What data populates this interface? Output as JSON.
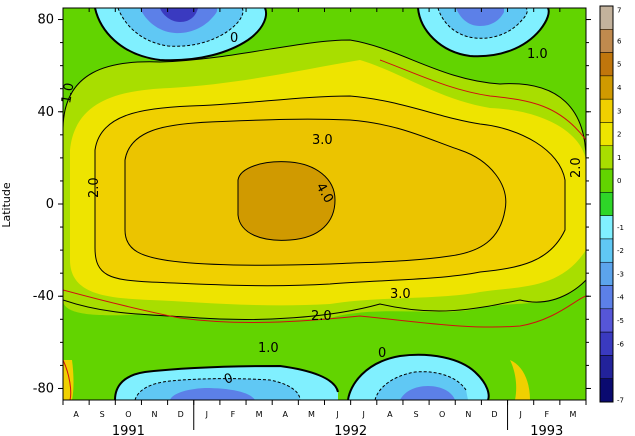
{
  "chart_data": {
    "type": "heatmap",
    "title": "",
    "ylabel": "Latitude",
    "xlabel": "",
    "ylim": [
      -85,
      85
    ],
    "y_ticks": [
      80,
      40,
      0,
      -40,
      -80
    ],
    "y_tick_labels": [
      "80",
      "40",
      "0",
      "-40",
      "-80"
    ],
    "x_months": [
      "A",
      "S",
      "O",
      "N",
      "D",
      "J",
      "F",
      "M",
      "A",
      "M",
      "J",
      "J",
      "A",
      "S",
      "O",
      "N",
      "D",
      "J",
      "F",
      "M"
    ],
    "x_years": [
      "1991",
      "1992",
      "1993"
    ],
    "colorbar": {
      "levels": [
        "7",
        "6",
        "5",
        "4",
        "3",
        "2",
        "1",
        "0",
        "-1",
        "-2",
        "-3",
        "-4",
        "-5",
        "-6",
        "-7"
      ],
      "colors": [
        "#c3b29c",
        "#c08a4e",
        "#c0760c",
        "#d09a00",
        "#f0d000",
        "#eee400",
        "#a8de00",
        "#62d400",
        "#2ed628",
        "#80f0ff",
        "#60c8f4",
        "#5ca4ec",
        "#5c80e8",
        "#5656d8",
        "#3a3ac0",
        "#22229a",
        "#0a0a70"
      ]
    },
    "contour_labels": [
      "1.0",
      "2.0",
      "3.0",
      "4.0",
      "0",
      "1.0",
      "2.0",
      "3.0",
      "0",
      "1.0",
      "0",
      "2.0"
    ],
    "notes_text": ""
  }
}
